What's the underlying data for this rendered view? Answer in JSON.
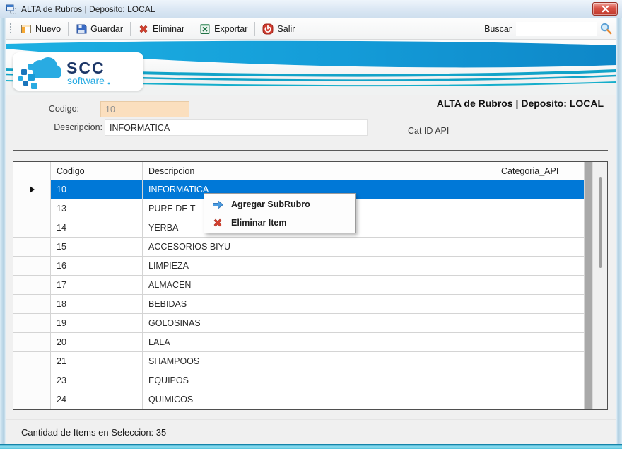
{
  "window": {
    "title": "ALTA de Rubros | Deposito: LOCAL"
  },
  "toolbar": {
    "buttons": [
      {
        "label": "Nuevo",
        "icon": "new-form-icon"
      },
      {
        "label": "Guardar",
        "icon": "save-floppy-icon"
      },
      {
        "label": "Eliminar",
        "icon": "delete-x-icon"
      },
      {
        "label": "Exportar",
        "icon": "excel-export-icon"
      },
      {
        "label": "Salir",
        "icon": "exit-power-icon"
      }
    ],
    "search_label": "Buscar",
    "search_value": "",
    "search_icon": "magnifier-icon"
  },
  "brand": {
    "name": "SCC",
    "subtitle": "software",
    "logo_icon": "cloud-logo-icon"
  },
  "form": {
    "codigo_label": "Codigo:",
    "codigo_value": "10",
    "descripcion_label": "Descripcion:",
    "descripcion_value": "INFORMATICA",
    "section_title": "ALTA de Rubros | Deposito: LOCAL",
    "cat_api_label": "Cat ID API"
  },
  "grid": {
    "columns": [
      "Codigo",
      "Descripcion",
      "Categoria_API"
    ],
    "rows": [
      {
        "codigo": "10",
        "descripcion": "INFORMATICA",
        "categoria_api": "",
        "selected": true
      },
      {
        "codigo": "13",
        "descripcion": "PURE DE T",
        "categoria_api": "",
        "selected": false
      },
      {
        "codigo": "14",
        "descripcion": "YERBA",
        "categoria_api": "",
        "selected": false
      },
      {
        "codigo": "15",
        "descripcion": "ACCESORIOS BIYU",
        "categoria_api": "",
        "selected": false
      },
      {
        "codigo": "16",
        "descripcion": "LIMPIEZA",
        "categoria_api": "",
        "selected": false
      },
      {
        "codigo": "17",
        "descripcion": "ALMACEN",
        "categoria_api": "",
        "selected": false
      },
      {
        "codigo": "18",
        "descripcion": "BEBIDAS",
        "categoria_api": "",
        "selected": false
      },
      {
        "codigo": "19",
        "descripcion": "GOLOSINAS",
        "categoria_api": "",
        "selected": false
      },
      {
        "codigo": "20",
        "descripcion": "LALA",
        "categoria_api": "",
        "selected": false
      },
      {
        "codigo": "21",
        "descripcion": "SHAMPOOS",
        "categoria_api": "",
        "selected": false
      },
      {
        "codigo": "23",
        "descripcion": "EQUIPOS",
        "categoria_api": "",
        "selected": false
      },
      {
        "codigo": "24",
        "descripcion": "QUIMICOS",
        "categoria_api": "",
        "selected": false
      }
    ]
  },
  "context_menu": {
    "items": [
      {
        "label": "Agregar SubRubro",
        "icon": "arrow-right-icon"
      },
      {
        "label": "Eliminar Item",
        "icon": "red-x-icon"
      }
    ]
  },
  "status_bar": {
    "text": "Cantidad de Items en Seleccion: 35"
  },
  "colors": {
    "selection_blue": "#0078D7",
    "banner_blue": "#149CD8",
    "stripe_teal": "#12A3C8",
    "logo_blue": "#29ABE2",
    "logo_navy": "#1C3667",
    "codigo_field_bg": "#FBDFBE",
    "close_button_red": "#D0473B",
    "window_border_cyan": "#53C3DE"
  }
}
